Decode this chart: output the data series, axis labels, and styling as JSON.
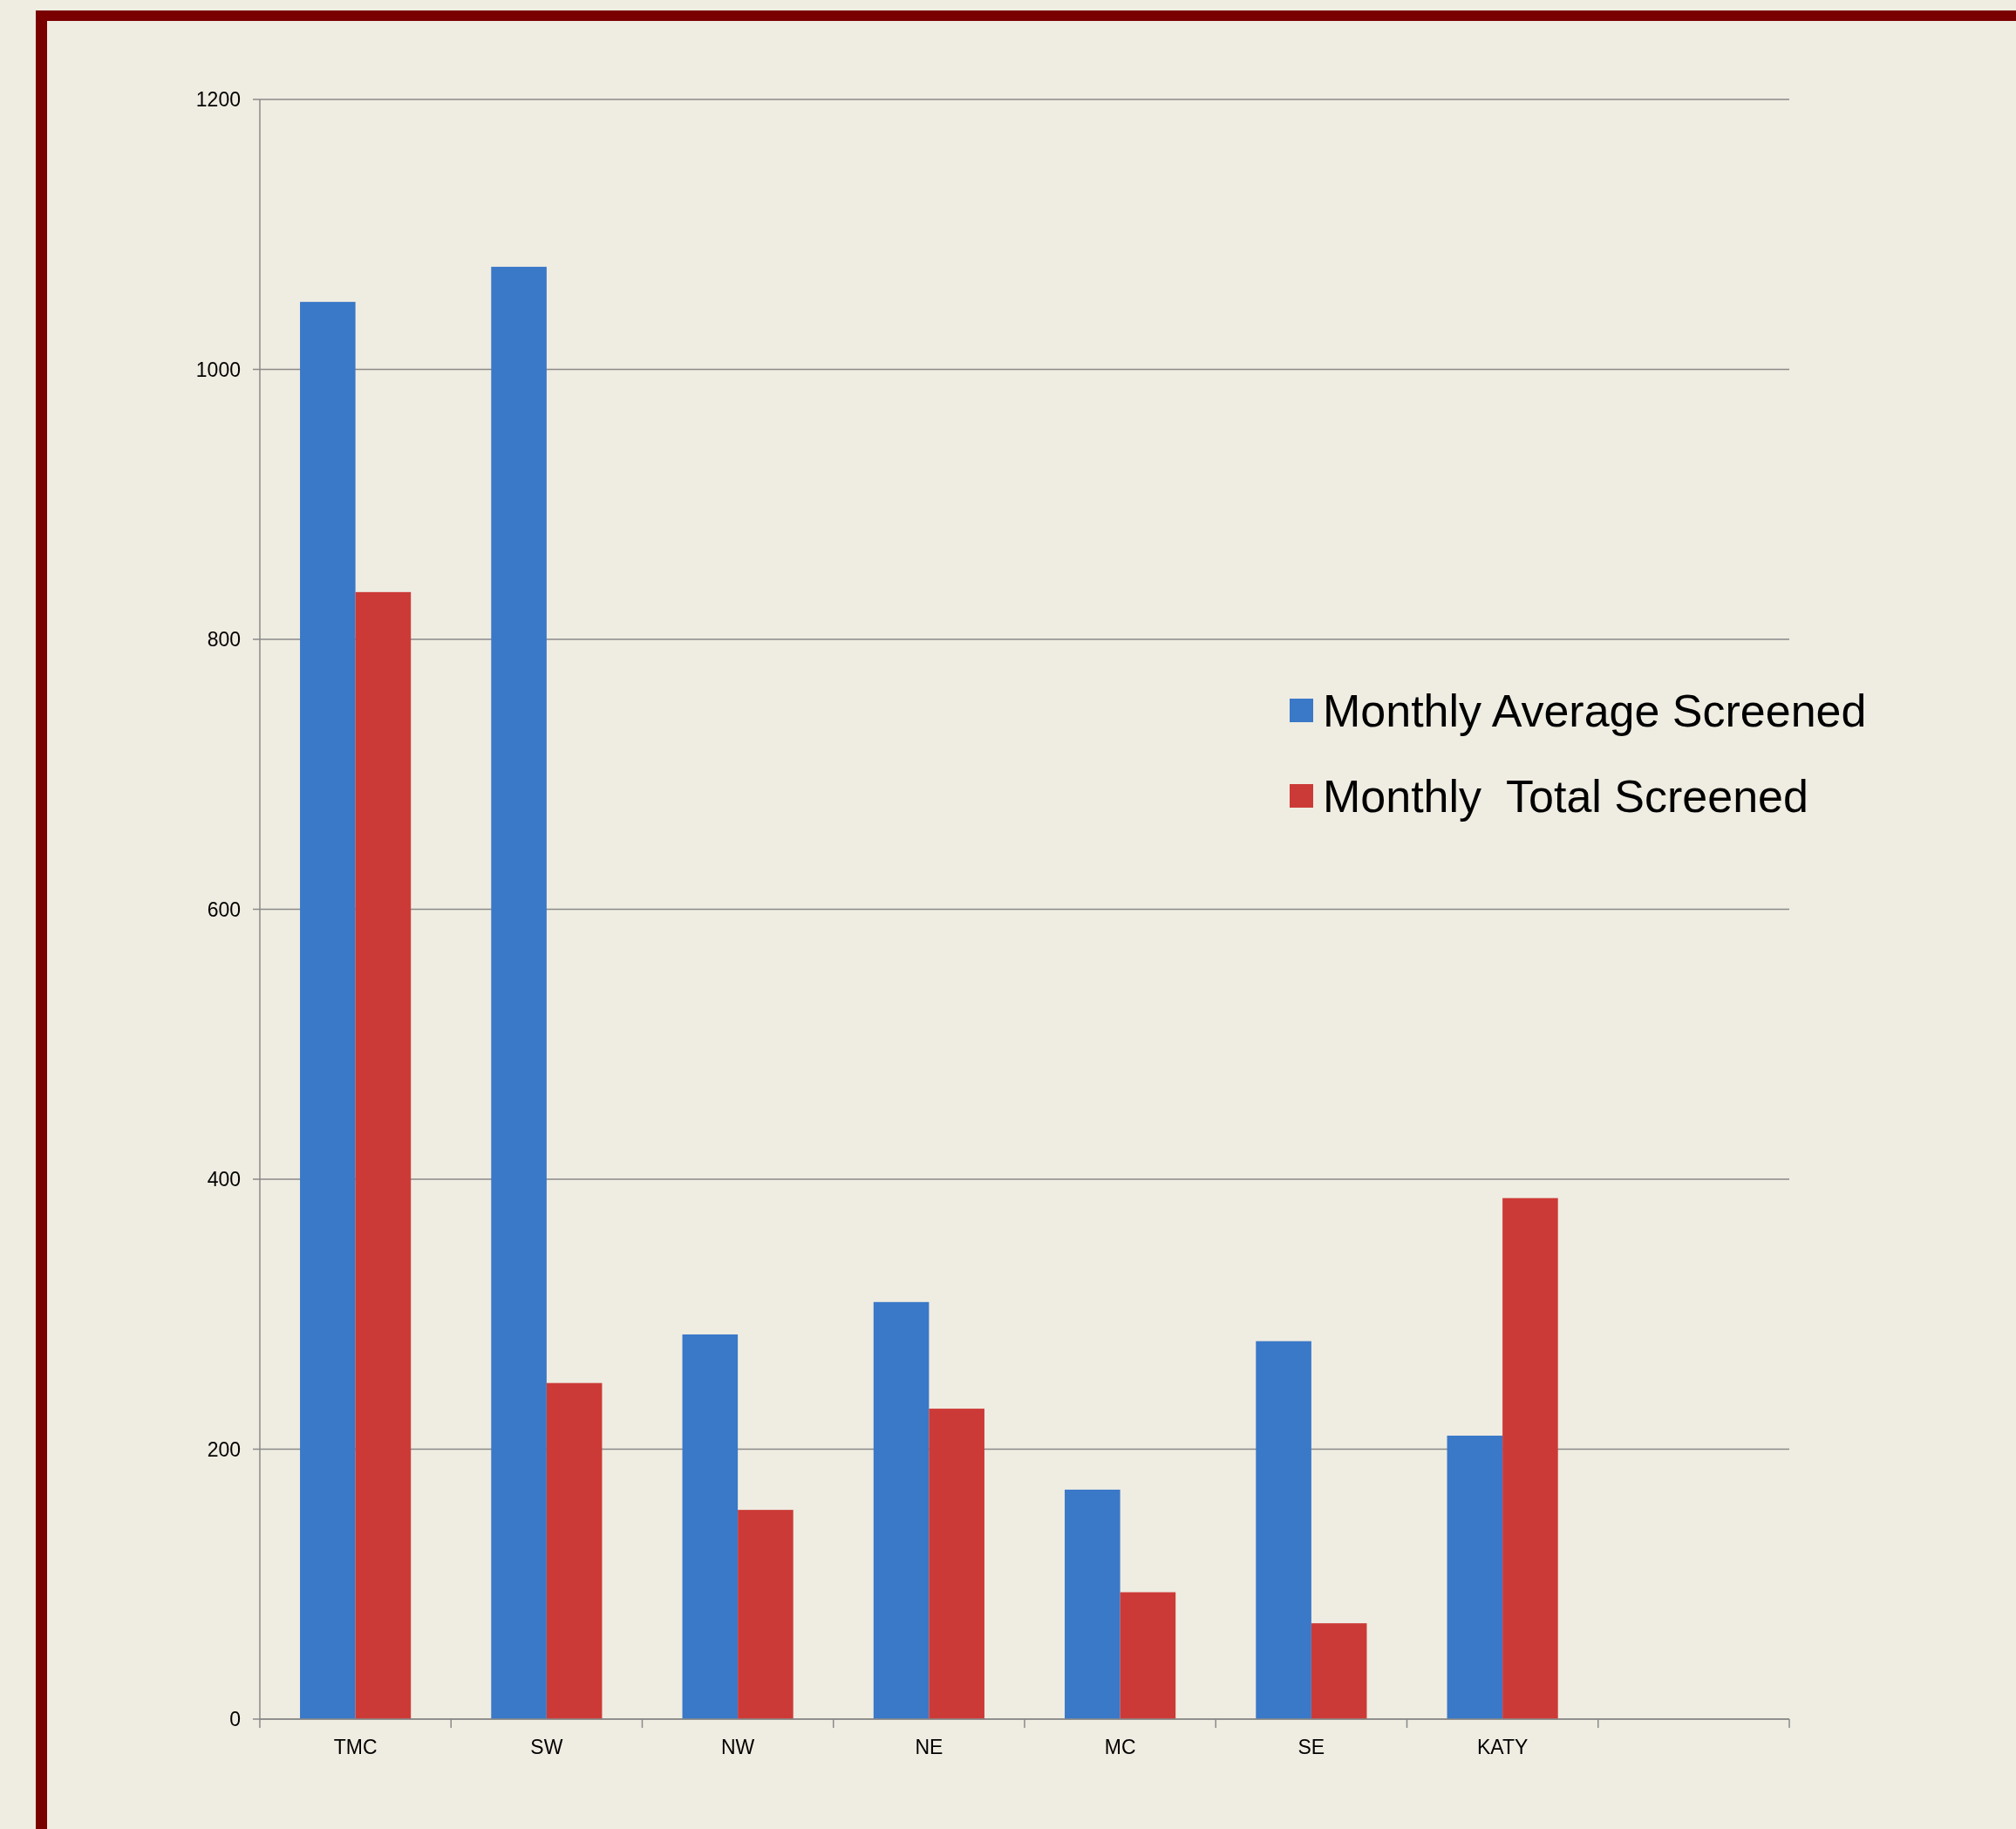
{
  "chart_data": {
    "type": "bar",
    "categories": [
      "TMC",
      "SW",
      "NW",
      "NE",
      "MC",
      "SE",
      "KATY",
      null
    ],
    "series": [
      {
        "name": "Monthly Average Screened",
        "color": "#3a78c8",
        "values": [
          1050,
          1076,
          285,
          309,
          170,
          280,
          210,
          null
        ]
      },
      {
        "name": "Monthly  Total Screened",
        "color": "#cc3a37",
        "values": [
          835,
          249,
          155,
          230,
          94,
          71,
          386,
          null
        ]
      }
    ],
    "ylim": [
      0,
      1200
    ],
    "yticks": [
      0,
      200,
      400,
      600,
      800,
      1000,
      1200
    ],
    "grid": "y",
    "legend": "right"
  }
}
